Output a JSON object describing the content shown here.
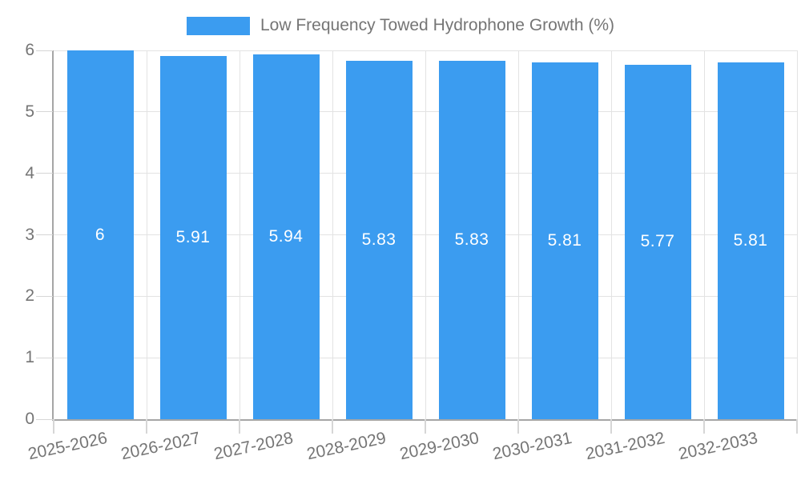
{
  "chart_data": {
    "type": "bar",
    "title": "",
    "xlabel": "",
    "ylabel": "",
    "legend": "Low Frequency Towed Hydrophone Growth (%)",
    "legend_position": "top-center",
    "categories": [
      "2025-2026",
      "2026-2027",
      "2027-2028",
      "2028-2029",
      "2029-2030",
      "2030-2031",
      "2031-2032",
      "2032-2033"
    ],
    "values": [
      6,
      5.91,
      5.94,
      5.83,
      5.83,
      5.81,
      5.77,
      5.81
    ],
    "bar_labels": [
      "6",
      "5.91",
      "5.94",
      "5.83",
      "5.83",
      "5.81",
      "5.77",
      "5.81"
    ],
    "ylim": [
      0,
      6
    ],
    "yticks": [
      0,
      1,
      2,
      3,
      4,
      5,
      6
    ],
    "grid": true,
    "colors": {
      "bar": "#3B9CF0",
      "bar_label": "#FFFFFF",
      "axis_text": "#757575",
      "axis_line": "#A6A6A6",
      "gridline": "#E3E3E3",
      "tick": "#D6D6D6",
      "background": "#FFFFFF"
    }
  }
}
